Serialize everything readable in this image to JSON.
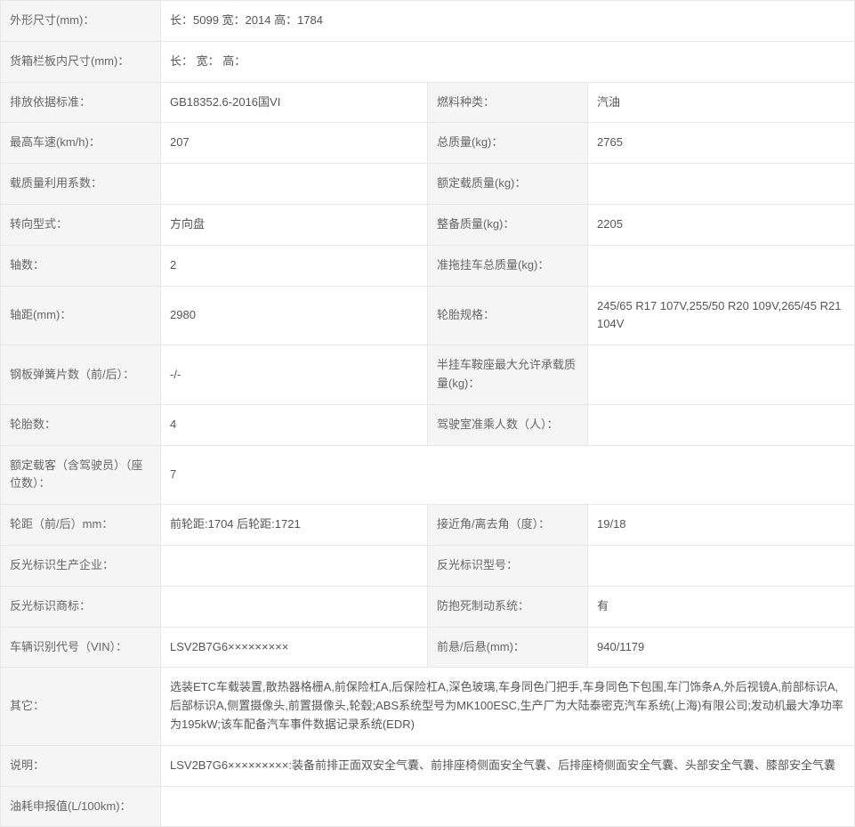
{
  "rows": {
    "dim_label": "外形尺寸(mm)：",
    "dim_value": "长：5099 宽：2014 高：1784",
    "cargo_label": "货箱栏板内尺寸(mm)：",
    "cargo_value": "长： 宽： 高：",
    "emission_label": "排放依据标准：",
    "emission_value": "GB18352.6-2016国VI",
    "fuel_label": "燃料种类：",
    "fuel_value": "汽油",
    "maxspeed_label": "最高车速(km/h)：",
    "maxspeed_value": "207",
    "totalmass_label": "总质量(kg)：",
    "totalmass_value": "2765",
    "loadfactor_label": "载质量利用系数：",
    "loadfactor_value": "",
    "ratedload_label": "额定载质量(kg)：",
    "ratedload_value": "",
    "steering_label": "转向型式：",
    "steering_value": "方向盘",
    "curbmass_label": "整备质量(kg)：",
    "curbmass_value": "2205",
    "axles_label": "轴数：",
    "axles_value": "2",
    "trailer_label": "准拖挂车总质量(kg)：",
    "trailer_value": "",
    "wheelbase_label": "轴距(mm)：",
    "wheelbase_value": "2980",
    "tirespec_label": "轮胎规格：",
    "tirespec_value": "245/65 R17 107V,255/50 R20 109V,265/45 R21 104V",
    "leafspring_label": "钢板弹簧片数（前/后）：",
    "leafspring_value": "-/-",
    "semitrailer_label": "半挂车鞍座最大允许承载质量(kg)：",
    "semitrailer_value": "",
    "tirecount_label": "轮胎数：",
    "tirecount_value": "4",
    "cabseats_label": "驾驶室准乘人数（人）：",
    "cabseats_value": "",
    "ratedpass_label": "额定载客（含驾驶员）（座位数）：",
    "ratedpass_value": "7",
    "track_label": "轮距（前/后）mm：",
    "track_value": "前轮距:1704 后轮距:1721",
    "angle_label": "接近角/离去角（度）：",
    "angle_value": "19/18",
    "reflector_mfr_label": "反光标识生产企业：",
    "reflector_mfr_value": "",
    "reflector_model_label": "反光标识型号：",
    "reflector_model_value": "",
    "reflector_brand_label": "反光标识商标：",
    "reflector_brand_value": "",
    "abs_label": "防抱死制动系统：",
    "abs_value": "有",
    "vin_label": "车辆识别代号（VIN）：",
    "vin_value": "LSV2B7G6×××××××××",
    "overhang_label": "前悬/后悬(mm)：",
    "overhang_value": "940/1179",
    "other_label": "其它：",
    "other_value": "选装ETC车载装置,散热器格栅A,前保险杠A,后保险杠A,深色玻璃,车身同色门把手,车身同色下包围,车门饰条A,外后视镜A,前部标识A,后部标识A,侧置摄像头,前置摄像头,轮毂;ABS系统型号为MK100ESC,生产厂为大陆泰密克汽车系统(上海)有限公司;发动机最大净功率为195kW;该车配备汽车事件数据记录系统(EDR)",
    "desc_label": "说明：",
    "desc_value": "LSV2B7G6×××××××××:装备前排正面双安全气囊、前排座椅侧面安全气囊、后排座椅侧面安全气囊、头部安全气囊、膝部安全气囊",
    "fuelcons_label": "油耗申报值(L/100km)：",
    "fuelcons_value": ""
  }
}
